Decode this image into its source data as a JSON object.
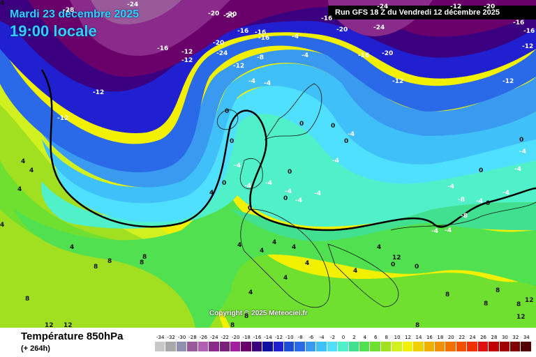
{
  "header": {
    "date": "Mardi 23 décembre 2025",
    "local_time": "19:00 locale",
    "run": "Run GFS 18 Z du Vendredi 12 décembre 2025"
  },
  "copyright": "Copyright © 2025 Meteociel.fr",
  "legend": {
    "variable": "Température 850hPa",
    "forecast_hours": "(+ 264h)",
    "scale_values": [
      "-34",
      "-32",
      "-30",
      "-28",
      "-26",
      "-24",
      "-22",
      "-20",
      "-18",
      "-16",
      "-14",
      "-12",
      "-10",
      "-8",
      "-6",
      "-4",
      "-2",
      "0",
      "2",
      "4",
      "6",
      "8",
      "10",
      "12",
      "14",
      "16",
      "18",
      "20",
      "22",
      "24",
      "26",
      "28",
      "30",
      "32",
      "34"
    ],
    "scale_colors": [
      "#c8c8c8",
      "#a8a8a8",
      "#9090b0",
      "#9a5a9a",
      "#b060b0",
      "#8a2a8a",
      "#7a207a",
      "#a020a0",
      "#6a006a",
      "#3a0080",
      "#1010a0",
      "#2020d0",
      "#1c4cd8",
      "#2a6ae8",
      "#3a9af0",
      "#40c0f8",
      "#50e0ff",
      "#50f0c8",
      "#40e090",
      "#50e050",
      "#70e030",
      "#a0e020",
      "#d0f020",
      "#f0f000",
      "#f0d000",
      "#f0b000",
      "#f09000",
      "#f07000",
      "#f05000",
      "#f03000",
      "#e01010",
      "#c00000",
      "#a00000",
      "#800000",
      "#500000"
    ]
  },
  "isotherm_labels": [
    {
      "text": "-28",
      "tone": "dark"
    },
    {
      "text": "-24",
      "tone": "dark"
    },
    {
      "text": "-20",
      "tone": "dark"
    },
    {
      "text": "-20",
      "tone": "dark"
    },
    {
      "text": "-20",
      "tone": "dark"
    },
    {
      "text": "-16",
      "tone": "dark"
    },
    {
      "text": "-16",
      "tone": "dark"
    },
    {
      "text": "-12",
      "tone": "dark"
    },
    {
      "text": "-12",
      "tone": "dark"
    },
    {
      "text": "-16",
      "tone": "dark"
    },
    {
      "text": "-20",
      "tone": "dark"
    },
    {
      "text": "-24",
      "tone": "dark"
    },
    {
      "text": "-12",
      "tone": "dark"
    },
    {
      "text": "-16",
      "tone": "dark"
    },
    {
      "text": "-16",
      "tone": "dark"
    },
    {
      "text": "-8",
      "tone": "dark"
    },
    {
      "text": "-4",
      "tone": "dark"
    },
    {
      "text": "-4",
      "tone": "dark"
    },
    {
      "text": "-4",
      "tone": "dark"
    },
    {
      "text": "-4",
      "tone": "dark"
    },
    {
      "text": "-12",
      "tone": "dark"
    },
    {
      "text": "-16",
      "tone": "dark"
    },
    {
      "text": "-20",
      "tone": "dark"
    },
    {
      "text": "-24",
      "tone": "dark"
    },
    {
      "text": "-20",
      "tone": "dark"
    },
    {
      "text": "-12",
      "tone": "dark"
    },
    {
      "text": "-24",
      "tone": "dark"
    },
    {
      "text": "-16",
      "tone": "dark"
    },
    {
      "text": "-12",
      "tone": "dark"
    },
    {
      "text": "-20",
      "tone": "dark"
    },
    {
      "text": "-16",
      "tone": "dark"
    },
    {
      "text": "-12",
      "tone": "dark"
    },
    {
      "text": "-12",
      "tone": "dark"
    },
    {
      "text": "-12",
      "tone": "dark"
    },
    {
      "text": "-4",
      "tone": "dark"
    },
    {
      "text": "0",
      "tone": "light"
    },
    {
      "text": "0",
      "tone": "light"
    },
    {
      "text": "-4",
      "tone": "dark"
    },
    {
      "text": "-4",
      "tone": "dark"
    },
    {
      "text": "-4",
      "tone": "dark"
    },
    {
      "text": "-4",
      "tone": "dark"
    },
    {
      "text": "-4",
      "tone": "dark"
    },
    {
      "text": "-4",
      "tone": "dark"
    },
    {
      "text": "0",
      "tone": "light"
    },
    {
      "text": "0",
      "tone": "light"
    },
    {
      "text": "0",
      "tone": "light"
    },
    {
      "text": "0",
      "tone": "light"
    },
    {
      "text": "-4",
      "tone": "dark"
    },
    {
      "text": "0",
      "tone": "light"
    },
    {
      "text": "0",
      "tone": "light"
    },
    {
      "text": "-4",
      "tone": "dark"
    },
    {
      "text": "0",
      "tone": "light"
    },
    {
      "text": "-4",
      "tone": "dark"
    },
    {
      "text": "-4",
      "tone": "dark"
    },
    {
      "text": "-4",
      "tone": "dark"
    },
    {
      "text": "-8",
      "tone": "dark"
    },
    {
      "text": "-8",
      "tone": "dark"
    },
    {
      "text": "-4",
      "tone": "dark"
    },
    {
      "text": "0",
      "tone": "light"
    },
    {
      "text": "-4",
      "tone": "dark"
    },
    {
      "text": "-4",
      "tone": "dark"
    },
    {
      "text": "0",
      "tone": "light"
    },
    {
      "text": "0",
      "tone": "light"
    },
    {
      "text": "4",
      "tone": "light"
    },
    {
      "text": "4",
      "tone": "light"
    },
    {
      "text": "4",
      "tone": "light"
    },
    {
      "text": "4",
      "tone": "light"
    },
    {
      "text": "4",
      "tone": "light"
    },
    {
      "text": "4",
      "tone": "light"
    },
    {
      "text": "4",
      "tone": "light"
    },
    {
      "text": "4",
      "tone": "light"
    },
    {
      "text": "4",
      "tone": "light"
    },
    {
      "text": "4",
      "tone": "light"
    },
    {
      "text": "4",
      "tone": "light"
    },
    {
      "text": "4",
      "tone": "light"
    },
    {
      "text": "4",
      "tone": "light"
    },
    {
      "text": "8",
      "tone": "light"
    },
    {
      "text": "8",
      "tone": "light"
    },
    {
      "text": "8",
      "tone": "light"
    },
    {
      "text": "8",
      "tone": "light"
    },
    {
      "text": "8",
      "tone": "light"
    },
    {
      "text": "8",
      "tone": "light"
    },
    {
      "text": "8",
      "tone": "light"
    },
    {
      "text": "8",
      "tone": "light"
    },
    {
      "text": "8",
      "tone": "light"
    },
    {
      "text": "8",
      "tone": "light"
    },
    {
      "text": "8",
      "tone": "light"
    },
    {
      "text": "8",
      "tone": "light"
    },
    {
      "text": "12",
      "tone": "light"
    },
    {
      "text": "12",
      "tone": "light"
    },
    {
      "text": "12",
      "tone": "light"
    },
    {
      "text": "12",
      "tone": "light"
    },
    {
      "text": "12",
      "tone": "light"
    },
    {
      "text": "0",
      "tone": "light"
    },
    {
      "text": "0",
      "tone": "light"
    },
    {
      "text": "4",
      "tone": "light"
    },
    {
      "text": "4",
      "tone": "light"
    },
    {
      "text": "4",
      "tone": "light"
    }
  ]
}
